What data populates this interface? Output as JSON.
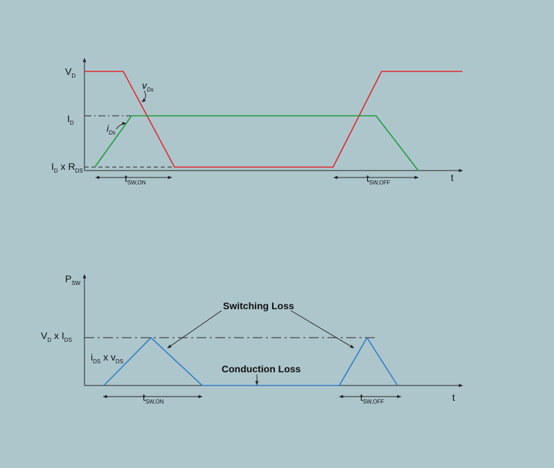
{
  "top_plot": {
    "vd_label": {
      "text": "V",
      "sub": "D"
    },
    "id_label": {
      "text": "I",
      "sub": "D"
    },
    "idrds_label": [
      {
        "text": "I",
        "sub": "D"
      },
      {
        "text": " x R",
        "sub": "DS"
      }
    ],
    "vds_label": {
      "text": "v",
      "sub": "Ds"
    },
    "ids_label": {
      "text": "i",
      "sub": "Ds"
    },
    "tsw_on": {
      "text": "t",
      "sub": "SW,ON"
    },
    "tsw_off": {
      "text": "t",
      "sub": "SW,OFF"
    },
    "x_label": "t"
  },
  "bottom_plot": {
    "psw_label": {
      "text": "P",
      "sub": "SW"
    },
    "vdid_label": [
      {
        "text": "V",
        "sub": "D"
      },
      {
        "text": " x I",
        "sub": "DS"
      }
    ],
    "idsvds_label": [
      {
        "text": "i",
        "sub": "DS"
      },
      {
        "text": " x v",
        "sub": "DS"
      }
    ],
    "switching_loss": "Switching Loss",
    "conduction_loss": "Conduction Loss",
    "tsw_on": {
      "text": "t",
      "sub": "SW,ON"
    },
    "tsw_off": {
      "text": "t",
      "sub": "SW,OFF"
    },
    "x_label": "t"
  }
}
